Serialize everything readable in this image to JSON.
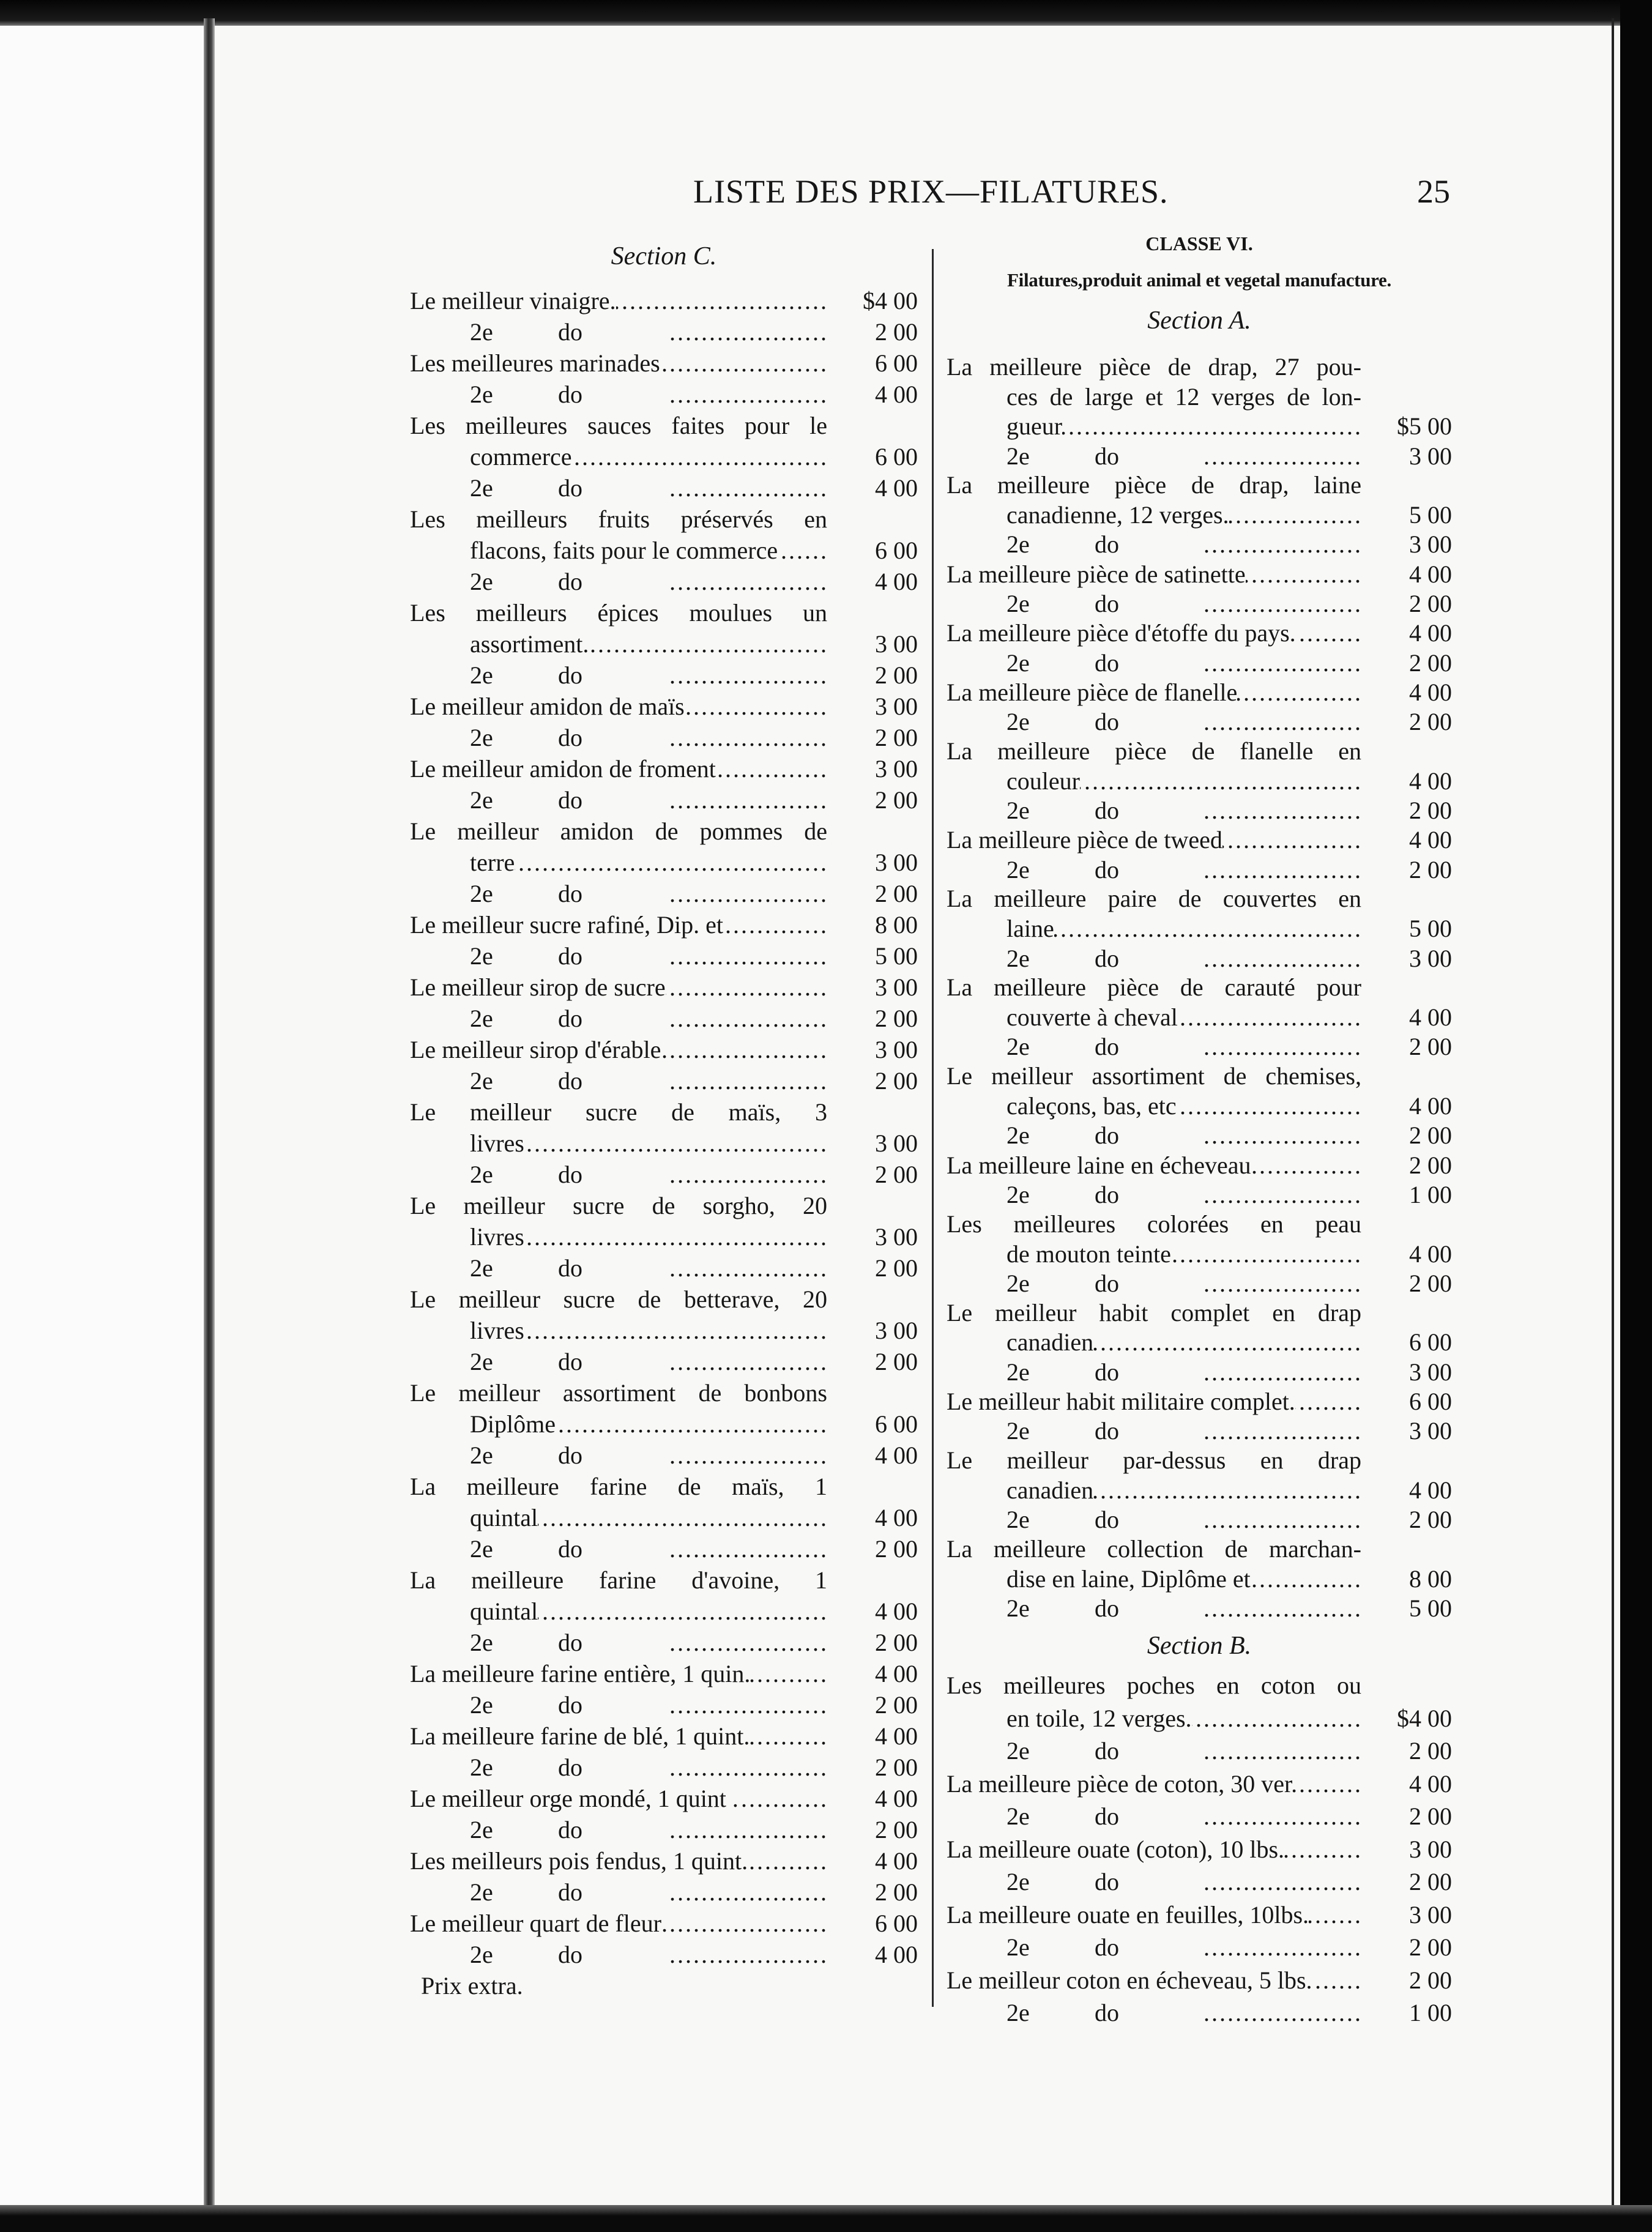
{
  "header": {
    "title": "LISTE DES PRIX—FILATURES.",
    "page_number": "25"
  },
  "left_column": {
    "section_title": "Section C.",
    "rows": [
      {
        "type": "entry",
        "text": "Le meilleur vinaigre.",
        "price": "$4 00"
      },
      {
        "type": "second",
        "rank": "2e",
        "ditto": "do",
        "price": "2 00"
      },
      {
        "type": "entry",
        "text": "Les meilleures marinades",
        "price": "6 00"
      },
      {
        "type": "second",
        "rank": "2e",
        "ditto": "do",
        "price": "4 00"
      },
      {
        "type": "line",
        "text": "Les meilleures sauces faites pour le"
      },
      {
        "type": "cont",
        "text": "commerce",
        "price": "6 00"
      },
      {
        "type": "second",
        "rank": "2e",
        "ditto": "do",
        "price": "4 00"
      },
      {
        "type": "line",
        "text": "Les meilleurs fruits préservés en"
      },
      {
        "type": "cont",
        "text": "flacons, faits pour le commerce",
        "price": "6 00"
      },
      {
        "type": "second",
        "rank": "2e",
        "ditto": "do",
        "price": "4 00"
      },
      {
        "type": "line",
        "text": "Les meilleurs épices moulues un"
      },
      {
        "type": "cont",
        "text": "assortiment.",
        "price": "3 00"
      },
      {
        "type": "second",
        "rank": "2e",
        "ditto": "do",
        "price": "2 00"
      },
      {
        "type": "entry",
        "text": "Le meilleur amidon de maïs",
        "price": "3 00"
      },
      {
        "type": "second",
        "rank": "2e",
        "ditto": "do",
        "price": "2 00"
      },
      {
        "type": "entry",
        "text": "Le meilleur amidon de froment",
        "price": "3 00"
      },
      {
        "type": "second",
        "rank": "2e",
        "ditto": "do",
        "price": "2 00"
      },
      {
        "type": "line",
        "text": "Le meilleur amidon de pommes de"
      },
      {
        "type": "cont",
        "text": "terre",
        "price": "3 00"
      },
      {
        "type": "second",
        "rank": "2e",
        "ditto": "do",
        "price": "2 00"
      },
      {
        "type": "entry",
        "text": "Le meilleur sucre rafiné, Dip. et",
        "price": "8 00"
      },
      {
        "type": "second",
        "rank": "2e",
        "ditto": "do",
        "price": "5 00"
      },
      {
        "type": "entry",
        "text": "Le meilleur sirop de sucre",
        "price": "3 00"
      },
      {
        "type": "second",
        "rank": "2e",
        "ditto": "do",
        "price": "2 00"
      },
      {
        "type": "entry",
        "text": "Le meilleur sirop d'érable",
        "price": "3 00"
      },
      {
        "type": "second",
        "rank": "2e",
        "ditto": "do",
        "price": "2 00"
      },
      {
        "type": "line",
        "text": "Le meilleur sucre de maïs, 3"
      },
      {
        "type": "cont",
        "text": "livres",
        "price": "3 00"
      },
      {
        "type": "second",
        "rank": "2e",
        "ditto": "do",
        "price": "2 00"
      },
      {
        "type": "line",
        "text": "Le meilleur sucre de sorgho, 20"
      },
      {
        "type": "cont",
        "text": "livres",
        "price": "3 00"
      },
      {
        "type": "second",
        "rank": "2e",
        "ditto": "do",
        "price": "2 00"
      },
      {
        "type": "line",
        "text": "Le meilleur sucre de betterave, 20"
      },
      {
        "type": "cont",
        "text": "livres",
        "price": "3 00"
      },
      {
        "type": "second",
        "rank": "2e",
        "ditto": "do",
        "price": "2 00"
      },
      {
        "type": "line",
        "text": "Le meilleur assortiment de bonbons"
      },
      {
        "type": "cont",
        "text": "Diplôme",
        "price": "6 00"
      },
      {
        "type": "second",
        "rank": "2e",
        "ditto": "do",
        "price": "4 00"
      },
      {
        "type": "line",
        "text": "La meilleure farine de maïs, 1"
      },
      {
        "type": "cont",
        "text": "quintal",
        "price": "4 00"
      },
      {
        "type": "second",
        "rank": "2e",
        "ditto": "do",
        "price": "2 00"
      },
      {
        "type": "line",
        "text": "La meilleure farine d'avoine, 1"
      },
      {
        "type": "cont",
        "text": "quintal",
        "price": "4 00"
      },
      {
        "type": "second",
        "rank": "2e",
        "ditto": "do",
        "price": "2 00"
      },
      {
        "type": "entry",
        "text": "La meilleure farine entière, 1 quin.",
        "price": "4 00"
      },
      {
        "type": "second",
        "rank": "2e",
        "ditto": "do",
        "price": "2 00"
      },
      {
        "type": "entry",
        "text": "La meilleure farine de blé, 1 quint.",
        "price": "4 00"
      },
      {
        "type": "second",
        "rank": "2e",
        "ditto": "do",
        "price": "2 00"
      },
      {
        "type": "entry",
        "text": "Le meilleur orge mondé, 1 quint .",
        "price": "4 00"
      },
      {
        "type": "second",
        "rank": "2e",
        "ditto": "do",
        "price": "2 00"
      },
      {
        "type": "entry",
        "text": "Les meilleurs pois fendus, 1 quint.",
        "price": "4 00"
      },
      {
        "type": "second",
        "rank": "2e",
        "ditto": "do",
        "price": "2 00"
      },
      {
        "type": "entry",
        "text": "Le meilleur quart de fleur",
        "price": "6 00"
      },
      {
        "type": "second",
        "rank": "2e",
        "ditto": "do",
        "price": "4 00"
      },
      {
        "type": "plain",
        "text": "Prix extra."
      }
    ]
  },
  "right_column": {
    "class_title": "CLASSE VI.",
    "class_subtitle": "Filatures,produit animal et vegetal manufacture.",
    "section_a": {
      "title": "Section A.",
      "rows": [
        {
          "type": "line",
          "text": "La meilleure pièce de drap, 27 pou-"
        },
        {
          "type": "linecont",
          "text": "ces de large et 12 verges de lon-"
        },
        {
          "type": "cont",
          "text": "gueur",
          "price": "$5 00"
        },
        {
          "type": "second",
          "rank": "2e",
          "ditto": "do",
          "price": "3 00"
        },
        {
          "type": "line",
          "text": "La meilleure pièce de drap, laine"
        },
        {
          "type": "cont",
          "text": "canadienne, 12 verges.",
          "price": "5 00"
        },
        {
          "type": "second",
          "rank": "2e",
          "ditto": "do",
          "price": "3 00"
        },
        {
          "type": "entry",
          "text": "La meilleure pièce de satinette",
          "price": "4 00"
        },
        {
          "type": "second",
          "rank": "2e",
          "ditto": "do",
          "price": "2 00"
        },
        {
          "type": "entry",
          "text": "La meilleure pièce d'étoffe du pays.",
          "price": "4 00"
        },
        {
          "type": "second",
          "rank": "2e",
          "ditto": "do",
          "price": "2 00"
        },
        {
          "type": "entry",
          "text": "La meilleure pièce de flanelle",
          "price": "4 00"
        },
        {
          "type": "second",
          "rank": "2e",
          "ditto": "do",
          "price": "2 00"
        },
        {
          "type": "line",
          "text": "La meilleure pièce de flanelle en"
        },
        {
          "type": "cont",
          "text": "couleur",
          "price": "4 00"
        },
        {
          "type": "second",
          "rank": "2e",
          "ditto": "do",
          "price": "2 00"
        },
        {
          "type": "entry",
          "text": "La meilleure pièce de tweed",
          "price": "4 00"
        },
        {
          "type": "second",
          "rank": "2e",
          "ditto": "do",
          "price": "2 00"
        },
        {
          "type": "line",
          "text": "La meilleure paire de couvertes en"
        },
        {
          "type": "cont",
          "text": "laine",
          "price": "5 00"
        },
        {
          "type": "second",
          "rank": "2e",
          "ditto": "do",
          "price": "3 00"
        },
        {
          "type": "line",
          "text": "La meilleure pièce de carauté pour"
        },
        {
          "type": "cont",
          "text": "couverte à cheval",
          "price": "4 00"
        },
        {
          "type": "second",
          "rank": "2e",
          "ditto": "do",
          "price": "2 00"
        },
        {
          "type": "line",
          "text": "Le meilleur assortiment de chemises,"
        },
        {
          "type": "cont",
          "text": "caleçons, bas, etc",
          "price": "4 00"
        },
        {
          "type": "second",
          "rank": "2e",
          "ditto": "do",
          "price": "2 00"
        },
        {
          "type": "entry",
          "text": "La meilleure laine en écheveau",
          "price": "2 00"
        },
        {
          "type": "second",
          "rank": "2e",
          "ditto": "do",
          "price": "1 00"
        },
        {
          "type": "line",
          "text": "Les meilleures colorées en peau"
        },
        {
          "type": "cont",
          "text": "de mouton teinte",
          "price": "4 00"
        },
        {
          "type": "second",
          "rank": "2e",
          "ditto": "do",
          "price": "2 00"
        },
        {
          "type": "line",
          "text": "Le meilleur habit complet en drap"
        },
        {
          "type": "cont",
          "text": "canadien",
          "price": "6 00"
        },
        {
          "type": "second",
          "rank": "2e",
          "ditto": "do",
          "price": "3 00"
        },
        {
          "type": "entry",
          "text": "Le meilleur habit militaire complet.",
          "price": "6 00"
        },
        {
          "type": "second",
          "rank": "2e",
          "ditto": "do",
          "price": "3 00"
        },
        {
          "type": "line",
          "text": "Le meilleur par-dessus en drap"
        },
        {
          "type": "cont",
          "text": "canadien",
          "price": "4 00"
        },
        {
          "type": "second",
          "rank": "2e",
          "ditto": "do",
          "price": "2 00"
        },
        {
          "type": "line",
          "text": "La meilleure collection de marchan-"
        },
        {
          "type": "cont",
          "text": "dise en laine, Diplôme et",
          "price": "8 00"
        },
        {
          "type": "second",
          "rank": "2e",
          "ditto": "do",
          "price": "5 00"
        }
      ]
    },
    "section_b": {
      "title": "Section B.",
      "rows": [
        {
          "type": "line",
          "text": "Les meilleures poches en coton ou"
        },
        {
          "type": "cont",
          "text": "en toile, 12 verges.",
          "price": "$4 00"
        },
        {
          "type": "second",
          "rank": "2e",
          "ditto": "do",
          "price": "2 00"
        },
        {
          "type": "entry",
          "text": "La meilleure pièce de coton, 30 ver.",
          "price": "4 00"
        },
        {
          "type": "second",
          "rank": "2e",
          "ditto": "do",
          "price": "2 00"
        },
        {
          "type": "entry",
          "text": "La meilleure ouate (coton), 10 lbs.",
          "price": "3 00"
        },
        {
          "type": "second",
          "rank": "2e",
          "ditto": "do",
          "price": "2 00"
        },
        {
          "type": "entry",
          "text": "La meilleure ouate en feuilles, 10lbs.",
          "price": "3 00"
        },
        {
          "type": "second",
          "rank": "2e",
          "ditto": "do",
          "price": "2 00"
        },
        {
          "type": "entry",
          "text": "Le meilleur coton en écheveau, 5 lbs.",
          "price": "2 00"
        },
        {
          "type": "second",
          "rank": "2e",
          "ditto": "do",
          "price": "1 00"
        }
      ]
    }
  }
}
